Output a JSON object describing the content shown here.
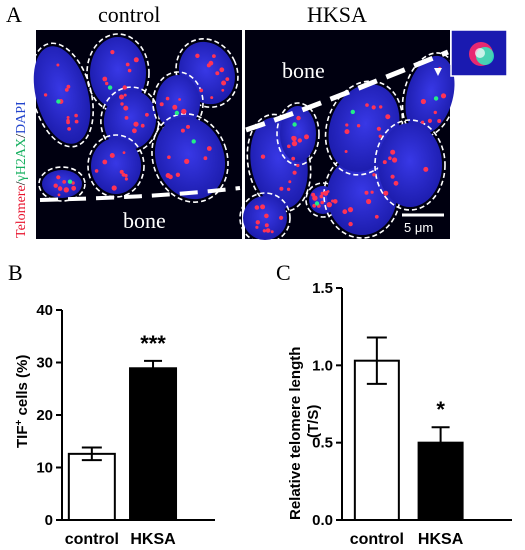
{
  "panel_a": {
    "letter": "A",
    "left_title": "control",
    "right_title": "HKSA",
    "left_region_label": "bone",
    "right_region_label": "bone",
    "stain_label": {
      "part1": "Telomere",
      "sep1": "/",
      "part2": "γH2AX",
      "sep2": "/",
      "part3": "DAPI"
    },
    "scale_bar_label": "5 μm",
    "colors": {
      "telomere": "#ff3355",
      "h2ax": "#22ee88",
      "dapi": "#2a2ad6",
      "background": "#000010"
    }
  },
  "chart_data": [
    {
      "panel": "B",
      "type": "bar",
      "categories": [
        "control",
        "HKSA"
      ],
      "values": [
        12.6,
        28.9
      ],
      "errors": [
        1.2,
        1.4
      ],
      "fills": [
        "#ffffff",
        "#000000"
      ],
      "ylabel_main": "TIF",
      "ylabel_sup": "+",
      "ylabel_rest": " cells  (%)",
      "ylim": [
        0,
        40
      ],
      "yticks": [
        "0",
        "10",
        "20",
        "30",
        "40"
      ],
      "annotation": "***",
      "annotation_index": 1
    },
    {
      "panel": "C",
      "type": "bar",
      "categories": [
        "control",
        "HKSA"
      ],
      "values": [
        1.03,
        0.5
      ],
      "errors": [
        0.15,
        0.1
      ],
      "fills": [
        "#ffffff",
        "#000000"
      ],
      "ylabel_line1": "Relative telomere length",
      "ylabel_line2": "(T/S)",
      "ylim": [
        0,
        1.5
      ],
      "yticks": [
        "0.0",
        "0.5",
        "1.0",
        "1.5"
      ],
      "annotation": "*",
      "annotation_index": 1
    }
  ]
}
